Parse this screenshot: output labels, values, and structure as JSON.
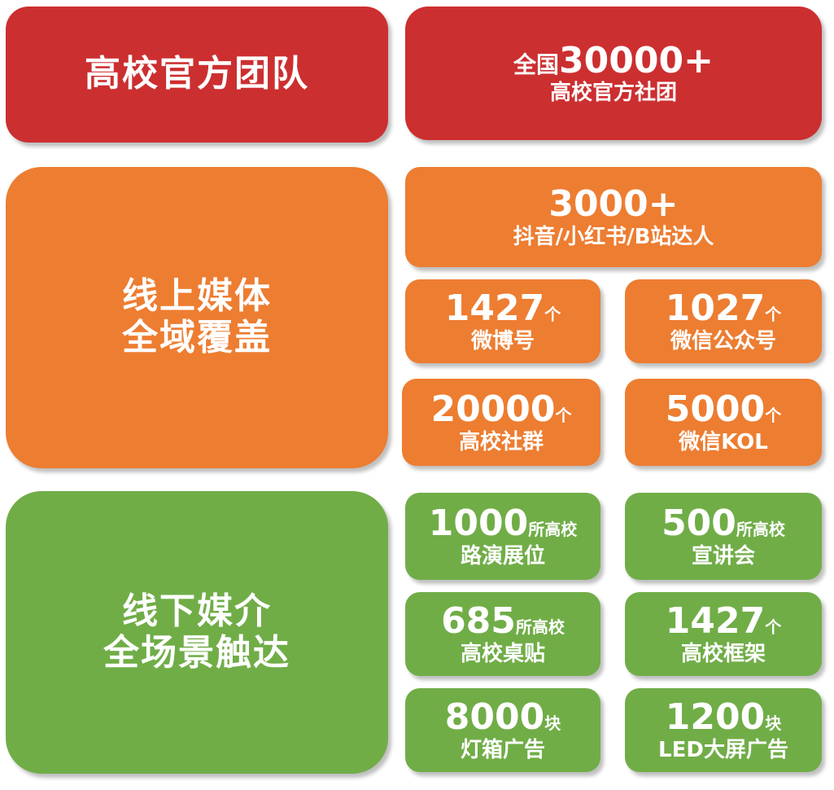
{
  "colors": {
    "red": "#cc2f30",
    "orange": "#ed7d31",
    "green": "#70ad47"
  },
  "team": {
    "title": "高校官方团队",
    "prefix": "全国",
    "number": "30000+",
    "desc": "高校官方社团"
  },
  "online": {
    "title_line1": "线上媒体",
    "title_line2": "全域覆盖",
    "featured": {
      "number": "3000+",
      "desc": "抖音/小红书/B站达人"
    },
    "items": [
      {
        "number": "1427",
        "unit": "个",
        "desc": "微博号"
      },
      {
        "number": "1027",
        "unit": "个",
        "desc": "微信公众号"
      },
      {
        "number": "20000",
        "unit": "个",
        "desc": "高校社群"
      },
      {
        "number": "5000",
        "unit": "个",
        "desc": "微信KOL"
      }
    ]
  },
  "offline": {
    "title_line1": "线下媒介",
    "title_line2": "全场景触达",
    "items": [
      {
        "number": "1000",
        "unit": "所高校",
        "desc": "路演展位"
      },
      {
        "number": "500",
        "unit": "所高校",
        "desc": "宣讲会"
      },
      {
        "number": "685",
        "unit": "所高校",
        "desc": "高校桌贴"
      },
      {
        "number": "1427",
        "unit": "个",
        "desc": "高校框架"
      },
      {
        "number": "8000",
        "unit": "块",
        "desc": "灯箱广告"
      },
      {
        "number": "1200",
        "unit": "块",
        "desc": "LED大屏广告"
      }
    ]
  }
}
